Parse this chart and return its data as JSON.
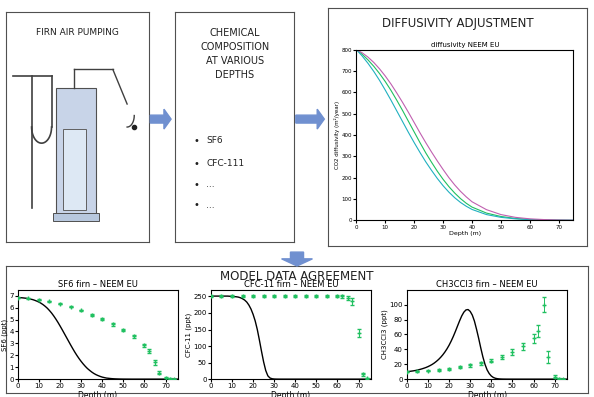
{
  "fig_width": 5.94,
  "fig_height": 3.97,
  "bg_color": "#ffffff",
  "top_panel": {
    "firn_box": {
      "title": "FIRN AIR PUMPING"
    },
    "chem_box": {
      "title": "CHEMICAL\nCOMPOSITION\nAT VARIOUS\nDEPTHS",
      "bullets": [
        "SF6",
        "CFC-111",
        "...",
        "..."
      ]
    },
    "diffusivity_box": {
      "title": "DIFFUSIVITY ADJUSTMENT",
      "plot_title": "diffusivity NEEM EU",
      "xlabel": "Depth (m)",
      "ylabel": "CO2 diffusivity (m²/year)",
      "xlim": [
        0,
        75
      ],
      "ylim": [
        0,
        800
      ],
      "xticks": [
        0,
        10,
        20,
        30,
        40,
        50,
        60,
        70
      ],
      "yticks": [
        0,
        100,
        200,
        300,
        400,
        500,
        600,
        700,
        800
      ],
      "depth": [
        0,
        2,
        4,
        6,
        8,
        10,
        12,
        14,
        16,
        18,
        20,
        22,
        24,
        26,
        28,
        30,
        32,
        34,
        36,
        38,
        40,
        45,
        50,
        55,
        60,
        65,
        70,
        75
      ],
      "diff1": [
        800,
        778,
        752,
        722,
        688,
        650,
        608,
        562,
        514,
        464,
        414,
        364,
        316,
        272,
        230,
        192,
        158,
        128,
        102,
        80,
        62,
        34,
        18,
        9,
        4,
        2,
        0.8,
        0.3
      ],
      "diff2": [
        800,
        770,
        736,
        698,
        656,
        610,
        562,
        512,
        462,
        412,
        364,
        318,
        274,
        234,
        196,
        162,
        132,
        106,
        84,
        66,
        51,
        27,
        14,
        7,
        3,
        1.5,
        0.6,
        0.2
      ],
      "diff3": [
        800,
        785,
        765,
        740,
        710,
        676,
        638,
        596,
        552,
        506,
        458,
        410,
        364,
        320,
        278,
        238,
        200,
        166,
        136,
        110,
        87,
        50,
        27,
        14,
        7,
        3.5,
        1.5,
        0.5
      ],
      "line_colors": [
        "#20c060",
        "#20b0c0",
        "#c060b0"
      ]
    }
  },
  "bottom_panel": {
    "title": "MODEL DATA AGREEMENT",
    "depth_model": [
      0,
      1,
      2,
      3,
      4,
      5,
      6,
      7,
      8,
      9,
      10,
      11,
      12,
      13,
      14,
      15,
      16,
      17,
      18,
      19,
      20,
      21,
      22,
      23,
      24,
      25,
      26,
      27,
      28,
      29,
      30,
      31,
      32,
      33,
      34,
      35,
      36,
      37,
      38,
      39,
      40,
      41,
      42,
      43,
      44,
      45,
      46,
      47,
      48,
      49,
      50,
      51,
      52,
      53,
      54,
      55,
      56,
      57,
      58,
      59,
      60,
      61,
      62,
      63,
      64,
      65,
      66,
      67,
      68,
      69,
      70,
      71,
      72,
      73,
      74,
      75,
      76
    ],
    "depth_data_sf6": [
      0,
      5,
      10,
      15,
      20,
      25,
      30,
      35,
      40,
      45,
      50,
      55,
      60,
      62,
      65,
      67,
      70,
      72,
      74
    ],
    "sf6_model": [
      6.85,
      6.84,
      6.83,
      6.81,
      6.79,
      6.76,
      6.72,
      6.68,
      6.62,
      6.55,
      6.47,
      6.37,
      6.25,
      6.11,
      5.95,
      5.76,
      5.55,
      5.31,
      5.05,
      4.77,
      4.47,
      4.16,
      3.84,
      3.52,
      3.2,
      2.88,
      2.57,
      2.27,
      1.99,
      1.73,
      1.49,
      1.27,
      1.07,
      0.89,
      0.74,
      0.6,
      0.48,
      0.38,
      0.3,
      0.23,
      0.17,
      0.13,
      0.09,
      0.07,
      0.05,
      0.035,
      0.025,
      0.018,
      0.012,
      0.008,
      0.005,
      0.004,
      0.003,
      0.002,
      0.001,
      0.001,
      0.001,
      0.001,
      0.001,
      0.001,
      0.001,
      0.001,
      0.001,
      0.001,
      0.001,
      0.001,
      0.001,
      0.001,
      0.001,
      0.001,
      0.001,
      0.001,
      0.001,
      0.001,
      0.001,
      0.001,
      0.001
    ],
    "sf6_data": [
      6.85,
      6.78,
      6.68,
      6.53,
      6.33,
      6.08,
      5.77,
      5.42,
      5.03,
      4.6,
      4.12,
      3.58,
      2.85,
      2.35,
      1.4,
      0.55,
      0.1,
      0.04,
      0.01
    ],
    "sf6_err": [
      0.04,
      0.04,
      0.05,
      0.05,
      0.06,
      0.06,
      0.07,
      0.08,
      0.09,
      0.1,
      0.11,
      0.12,
      0.14,
      0.16,
      0.18,
      0.12,
      0.04,
      0.02,
      0.01
    ],
    "sf6_ylim": [
      0,
      7.5
    ],
    "sf6_yticks": [
      0,
      1,
      2,
      3,
      4,
      5,
      6,
      7
    ],
    "sf6_ylabel": "SF6 (ppt)",
    "sf6_title": "SF6 firn – NEEM EU",
    "depth_data_cfc11": [
      0,
      5,
      10,
      15,
      20,
      25,
      30,
      35,
      40,
      45,
      50,
      55,
      60,
      62,
      65,
      67,
      70,
      72,
      74
    ],
    "cfc11_model": [
      251,
      251,
      251,
      251,
      251,
      251,
      251,
      251,
      251,
      250.5,
      250,
      249.5,
      249,
      248,
      246,
      243,
      239,
      233,
      224,
      212,
      196,
      176,
      150,
      118,
      84,
      52,
      26,
      10,
      3.5,
      1.2,
      0.4,
      0.15,
      0.06,
      0.025,
      0.01,
      0.004,
      0.002,
      0.001,
      0.001,
      0.001,
      0.001,
      0.001,
      0.001,
      0.001,
      0.001,
      0.001,
      0.001,
      0.001,
      0.001,
      0.001,
      0.001,
      0.001,
      0.001,
      0.001,
      0.001,
      0.001,
      0.001,
      0.001,
      0.001,
      0.001,
      0.001,
      0.001,
      0.001,
      0.001,
      0.001,
      0.001,
      0.001,
      0.001,
      0.001,
      0.001,
      0.001,
      0.001,
      0.001,
      0.001,
      0.001,
      0.001,
      0.001
    ],
    "cfc11_data": [
      251,
      251,
      251,
      251,
      251,
      251,
      251,
      251,
      251,
      251,
      251,
      251,
      251,
      250,
      245,
      235,
      140,
      15,
      2
    ],
    "cfc11_err": [
      2,
      2,
      2,
      2,
      2,
      2,
      2,
      2,
      2,
      2,
      2,
      2,
      3,
      4,
      6,
      10,
      12,
      5,
      1
    ],
    "cfc11_ylim": [
      0,
      270
    ],
    "cfc11_yticks": [
      0,
      50,
      100,
      150,
      200,
      250
    ],
    "cfc11_ylabel": "CFC-11 (ppt)",
    "cfc11_title": "CFC-11 firn – NEEM EU",
    "depth_data_ch3": [
      0,
      5,
      10,
      15,
      20,
      25,
      30,
      35,
      40,
      45,
      50,
      55,
      60,
      62,
      65,
      67,
      70,
      72,
      74
    ],
    "ch3ccl3_model": [
      10,
      10.3,
      10.7,
      11.1,
      11.6,
      12.2,
      12.9,
      13.7,
      14.6,
      15.6,
      16.8,
      18.2,
      19.8,
      21.7,
      23.9,
      26.4,
      29.3,
      32.6,
      36.4,
      40.7,
      45.6,
      51.2,
      57.4,
      64.2,
      71.4,
      78.5,
      85.0,
      90.0,
      93.0,
      93.5,
      91.0,
      86.0,
      78.0,
      67.0,
      55.0,
      42.0,
      30.0,
      20.0,
      12.5,
      7.5,
      4.2,
      2.2,
      1.1,
      0.55,
      0.27,
      0.13,
      0.065,
      0.032,
      0.016,
      0.008,
      0.004,
      0.002,
      0.001,
      0.001,
      0.001,
      0.001,
      0.001,
      0.001,
      0.001,
      0.001,
      0.001,
      0.001,
      0.001,
      0.001,
      0.001,
      0.001,
      0.001,
      0.001,
      0.001,
      0.001,
      0.001,
      0.001,
      0.001,
      0.001,
      0.001,
      0.001,
      0.001
    ],
    "ch3ccl3_data": [
      10,
      10.5,
      11.5,
      12.5,
      14,
      16,
      18.5,
      21.5,
      25,
      30,
      36,
      44,
      55,
      65,
      100,
      30,
      3,
      0.5,
      0.1
    ],
    "ch3ccl3_err": [
      1,
      1,
      1,
      1,
      1.5,
      1.5,
      2,
      2,
      2.5,
      3,
      4,
      5,
      6,
      8,
      10,
      8,
      2,
      0.5,
      0.1
    ],
    "ch3ccl3_ylim": [
      0,
      120
    ],
    "ch3ccl3_yticks": [
      0,
      20,
      40,
      60,
      80,
      100
    ],
    "ch3ccl3_ylabel": "CH3CCl3 (ppt)",
    "ch3ccl3_title": "CH3CCl3 firn – NEEM EU",
    "depth_xlim": [
      0,
      76
    ],
    "depth_xticks": [
      0,
      10,
      20,
      30,
      40,
      50,
      60,
      70
    ],
    "depth_xlabel": "Depth (m)",
    "model_color": "#000000",
    "data_color": "#20c060",
    "data_marker": "+",
    "model_linewidth": 1.0,
    "data_markersize": 3.5
  },
  "arrow_color": "#7090d0"
}
